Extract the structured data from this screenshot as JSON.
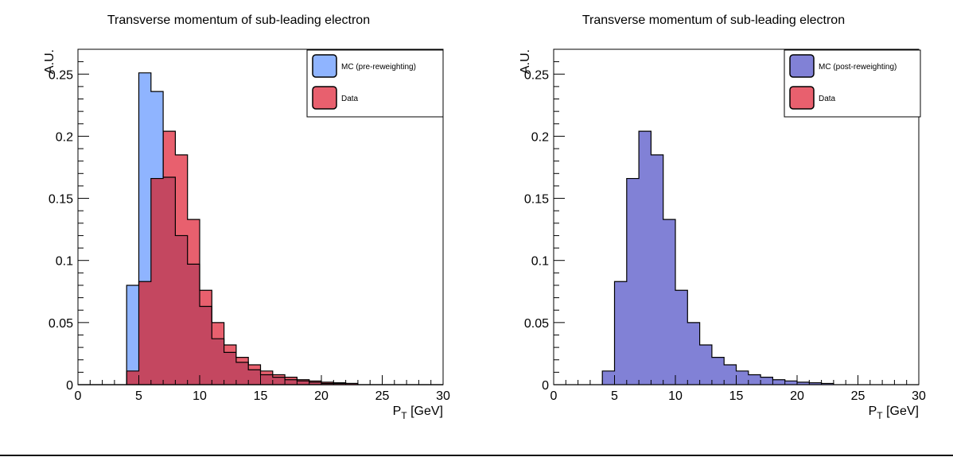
{
  "colors": {
    "mc_pre": "#8fb4ff",
    "data": "#e8606e",
    "overlap": "#c44760",
    "mc_post": "#8181d6",
    "axis": "#000000"
  },
  "chart_data": [
    {
      "type": "histogram",
      "title": "Transverse momentum of sub-leading electron",
      "xlabel_main": "P",
      "xlabel_sub": "T",
      "xlabel_unit": " [GeV]",
      "ylabel": "A.U.",
      "xlim": [
        0,
        30
      ],
      "ylim": [
        0,
        0.27
      ],
      "xticks": [
        0,
        5,
        10,
        15,
        20,
        25,
        30
      ],
      "xtick_labels": [
        "0",
        "5",
        "10",
        "15",
        "20",
        "25",
        "30"
      ],
      "yticks": [
        0,
        0.05,
        0.1,
        0.15,
        0.2,
        0.25
      ],
      "ytick_labels": [
        "0",
        "0.05",
        "0.1",
        "0.15",
        "0.2",
        "0.25"
      ],
      "bin_edges": [
        0,
        1,
        2,
        3,
        4,
        5,
        6,
        7,
        8,
        9,
        10,
        11,
        12,
        13,
        14,
        15,
        16,
        17,
        18,
        19,
        20,
        21,
        22,
        23,
        24,
        25,
        26,
        27,
        28,
        29,
        30
      ],
      "legend_position": "top-right",
      "series": [
        {
          "name": "MC (pre-reweighting)",
          "color_key": "mc_pre",
          "values": [
            0,
            0,
            0,
            0,
            0.08,
            0.251,
            0.236,
            0.167,
            0.12,
            0.097,
            0.063,
            0.037,
            0.026,
            0.018,
            0.012,
            0.008,
            0.006,
            0.004,
            0.003,
            0.002,
            0.001,
            0.001,
            0.001,
            0,
            0,
            0,
            0,
            0,
            0,
            0
          ]
        },
        {
          "name": "Data",
          "color_key": "data",
          "values": [
            0,
            0,
            0,
            0,
            0.011,
            0.083,
            0.166,
            0.204,
            0.185,
            0.133,
            0.076,
            0.05,
            0.032,
            0.022,
            0.016,
            0.011,
            0.008,
            0.006,
            0.004,
            0.003,
            0.002,
            0.0015,
            0.001,
            0,
            0,
            0,
            0,
            0,
            0,
            0
          ]
        }
      ]
    },
    {
      "type": "histogram",
      "title": "Transverse momentum of sub-leading electron",
      "xlabel_main": "P",
      "xlabel_sub": "T",
      "xlabel_unit": " [GeV]",
      "ylabel": "A.U.",
      "xlim": [
        0,
        30
      ],
      "ylim": [
        0,
        0.27
      ],
      "xticks": [
        0,
        5,
        10,
        15,
        20,
        25,
        30
      ],
      "xtick_labels": [
        "0",
        "5",
        "10",
        "15",
        "20",
        "25",
        "30"
      ],
      "yticks": [
        0,
        0.05,
        0.1,
        0.15,
        0.2,
        0.25
      ],
      "ytick_labels": [
        "0",
        "0.05",
        "0.1",
        "0.15",
        "0.2",
        "0.25"
      ],
      "bin_edges": [
        0,
        1,
        2,
        3,
        4,
        5,
        6,
        7,
        8,
        9,
        10,
        11,
        12,
        13,
        14,
        15,
        16,
        17,
        18,
        19,
        20,
        21,
        22,
        23,
        24,
        25,
        26,
        27,
        28,
        29,
        30
      ],
      "legend_position": "top-right",
      "series": [
        {
          "name": "MC (post-reweighting)",
          "color_key": "mc_post",
          "values": [
            0,
            0,
            0,
            0,
            0.011,
            0.083,
            0.166,
            0.204,
            0.185,
            0.133,
            0.076,
            0.05,
            0.032,
            0.022,
            0.016,
            0.011,
            0.008,
            0.006,
            0.004,
            0.003,
            0.002,
            0.0015,
            0.001,
            0,
            0,
            0,
            0,
            0,
            0,
            0
          ]
        },
        {
          "name": "Data",
          "color_key": "data",
          "values": [
            0,
            0,
            0,
            0,
            0.011,
            0.083,
            0.166,
            0.204,
            0.185,
            0.133,
            0.076,
            0.05,
            0.032,
            0.022,
            0.016,
            0.011,
            0.008,
            0.006,
            0.004,
            0.003,
            0.002,
            0.0015,
            0.001,
            0,
            0,
            0,
            0,
            0,
            0,
            0
          ]
        }
      ]
    }
  ]
}
